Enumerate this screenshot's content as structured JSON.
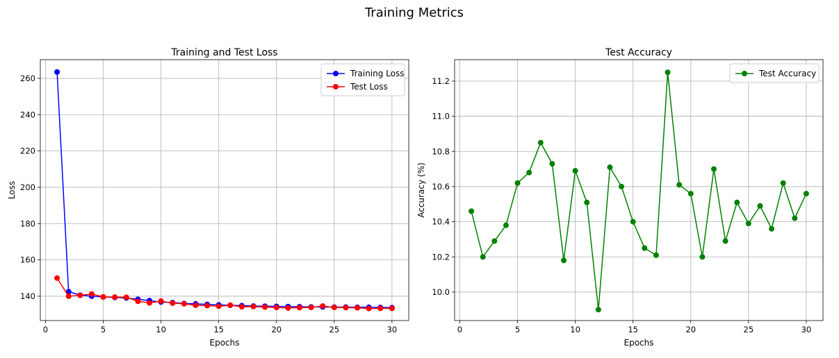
{
  "figure_title": "Training Metrics",
  "colors": {
    "train": "#0000ff",
    "test": "#ff0000",
    "accuracy": "#008000",
    "grid": "#b0b0b0"
  },
  "chart_data": [
    {
      "type": "line",
      "title": "Training and Test Loss",
      "xlabel": "Epochs",
      "ylabel": "Loss",
      "xlim": [
        -0.45,
        31.45
      ],
      "ylim": [
        126.6,
        270.3
      ],
      "xticks": [
        0,
        5,
        10,
        15,
        20,
        25,
        30
      ],
      "yticks": [
        140,
        160,
        180,
        200,
        220,
        240,
        260
      ],
      "grid": true,
      "legend_position": "top-right",
      "x": [
        1,
        2,
        3,
        4,
        5,
        6,
        7,
        8,
        9,
        10,
        11,
        12,
        13,
        14,
        15,
        16,
        17,
        18,
        19,
        20,
        21,
        22,
        23,
        24,
        25,
        26,
        27,
        28,
        29,
        30
      ],
      "series": [
        {
          "name": "Training Loss",
          "color": "#0000ff",
          "values": [
            263.5,
            142.5,
            140.6,
            140.0,
            139.6,
            139.3,
            139.0,
            138.3,
            137.6,
            136.8,
            136.5,
            136.0,
            135.8,
            135.5,
            135.2,
            135.0,
            134.8,
            134.6,
            134.5,
            134.4,
            134.3,
            134.2,
            134.1,
            134.1,
            134.0,
            134.0,
            133.9,
            133.9,
            133.8,
            133.7
          ]
        },
        {
          "name": "Test Loss",
          "color": "#ff0000",
          "values": [
            150.0,
            140.0,
            140.5,
            141.2,
            139.6,
            139.5,
            139.4,
            137.2,
            136.3,
            137.3,
            136.2,
            135.8,
            135.0,
            134.8,
            134.5,
            135.0,
            134.2,
            134.3,
            134.0,
            133.8,
            133.5,
            133.7,
            133.8,
            134.6,
            133.8,
            133.7,
            133.6,
            133.2,
            133.3,
            133.3
          ]
        }
      ]
    },
    {
      "type": "line",
      "title": "Test Accuracy",
      "xlabel": "Epochs",
      "ylabel": "Accuracy (%)",
      "xlim": [
        -0.45,
        31.45
      ],
      "ylim": [
        9.838,
        11.322
      ],
      "xticks": [
        0,
        5,
        10,
        15,
        20,
        25,
        30
      ],
      "yticks": [
        10.0,
        10.2,
        10.4,
        10.6,
        10.8,
        11.0,
        11.2
      ],
      "ytick_labels": [
        "10.0",
        "10.2",
        "10.4",
        "10.6",
        "10.8",
        "11.0",
        "11.2"
      ],
      "grid": true,
      "legend_position": "top-right",
      "x": [
        1,
        2,
        3,
        4,
        5,
        6,
        7,
        8,
        9,
        10,
        11,
        12,
        13,
        14,
        15,
        16,
        17,
        18,
        19,
        20,
        21,
        22,
        23,
        24,
        25,
        26,
        27,
        28,
        29,
        30
      ],
      "series": [
        {
          "name": "Test Accuracy",
          "color": "#008000",
          "values": [
            10.46,
            10.2,
            10.29,
            10.38,
            10.62,
            10.68,
            10.85,
            10.73,
            10.18,
            10.69,
            10.51,
            9.9,
            10.71,
            10.6,
            10.4,
            10.25,
            10.21,
            11.25,
            10.61,
            10.56,
            10.2,
            10.7,
            10.29,
            10.51,
            10.39,
            10.49,
            10.36,
            10.62,
            10.42,
            10.56
          ]
        }
      ]
    }
  ]
}
